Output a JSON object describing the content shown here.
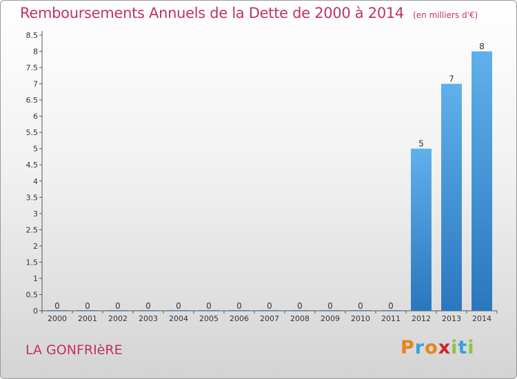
{
  "header": {
    "title": "Remboursements Annuels de la Dette de 2000 à 2014",
    "unit": "(en milliers d'€)"
  },
  "footer": {
    "commune": "LA GONFRIèRE",
    "brand": "Proxiti",
    "brand_colors": [
      "#e8841a",
      "#3aa0d8",
      "#e8841a",
      "#d2232a",
      "#8cc63f",
      "#3aa0d8",
      "#8cc63f"
    ]
  },
  "chart_data": {
    "type": "bar",
    "title": "Remboursements Annuels de la Dette de 2000 à 2014",
    "xlabel": "",
    "ylabel": "",
    "categories": [
      "2000",
      "2001",
      "2002",
      "2003",
      "2004",
      "2005",
      "2006",
      "2007",
      "2008",
      "2009",
      "2010",
      "2011",
      "2012",
      "2013",
      "2014"
    ],
    "values": [
      0,
      0,
      0,
      0,
      0,
      0,
      0,
      0,
      0,
      0,
      0,
      0,
      5,
      7,
      8
    ],
    "ylim": [
      0,
      8.5
    ],
    "yticks": [
      "0",
      "0.5",
      "1",
      "1.5",
      "2",
      "2.5",
      "3",
      "3.5",
      "4",
      "4.5",
      "5",
      "5.5",
      "6",
      "6.5",
      "7",
      "7.5",
      "8",
      "8.5"
    ],
    "grid": false,
    "bar_color": "#3d8fd6"
  }
}
